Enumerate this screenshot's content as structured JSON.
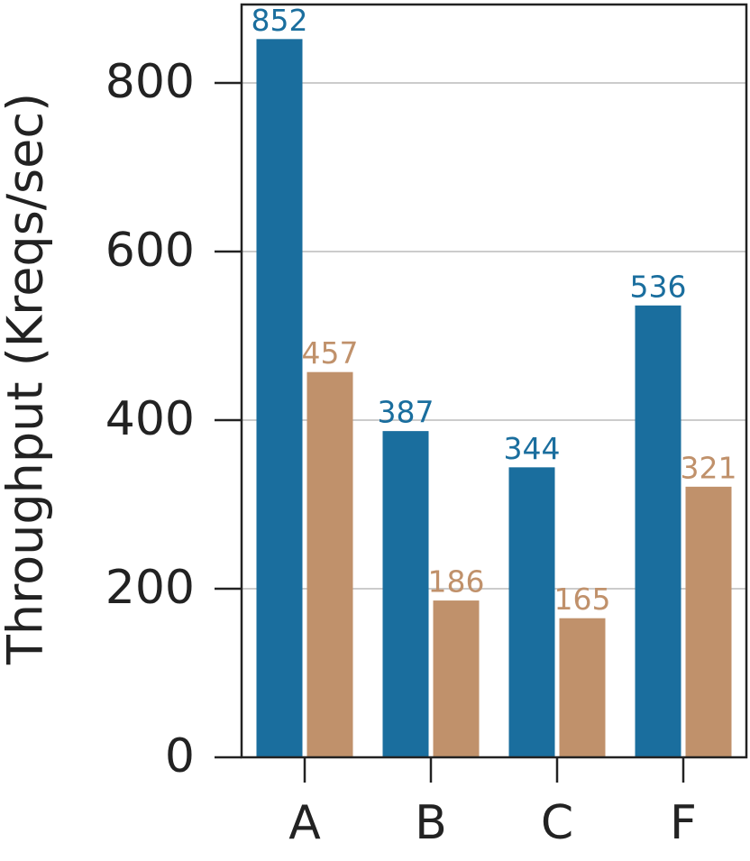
{
  "chart_data": {
    "type": "bar",
    "y_label": "Throughput (Kreqs/sec)",
    "categories": [
      "A",
      "B",
      "C",
      "F"
    ],
    "series": [
      {
        "color": "#1a6e9e",
        "values": [
          852,
          387,
          344,
          536
        ]
      },
      {
        "color": "#c0916b",
        "values": [
          457,
          186,
          165,
          321
        ]
      }
    ],
    "ylim": [
      0,
      893
    ],
    "yticks": [
      0,
      200,
      400,
      600,
      800
    ],
    "grid": true
  }
}
